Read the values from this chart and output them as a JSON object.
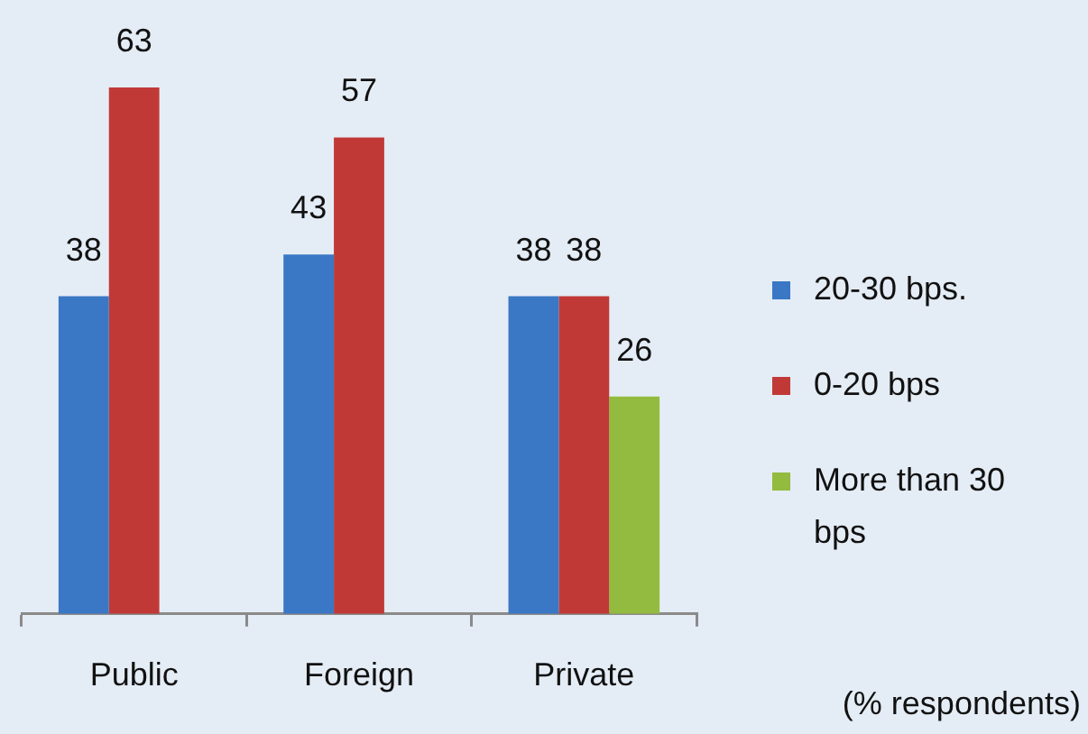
{
  "chart_data": {
    "type": "bar",
    "categories": [
      "Public",
      "Foreign",
      "Private"
    ],
    "series": [
      {
        "name": "20-30 bps.",
        "color": "#3a77c4",
        "values": [
          38,
          43,
          38
        ]
      },
      {
        "name": "0-20 bps",
        "color": "#c13936",
        "values": [
          63,
          57,
          38
        ]
      },
      {
        "name": "More than 30 bps",
        "color": "#93bb3f",
        "values": [
          null,
          null,
          26
        ]
      }
    ],
    "data_labels": true,
    "grid": false,
    "legend": "right",
    "tick_labels": "x",
    "annotations": [
      "(% respondents)"
    ]
  }
}
